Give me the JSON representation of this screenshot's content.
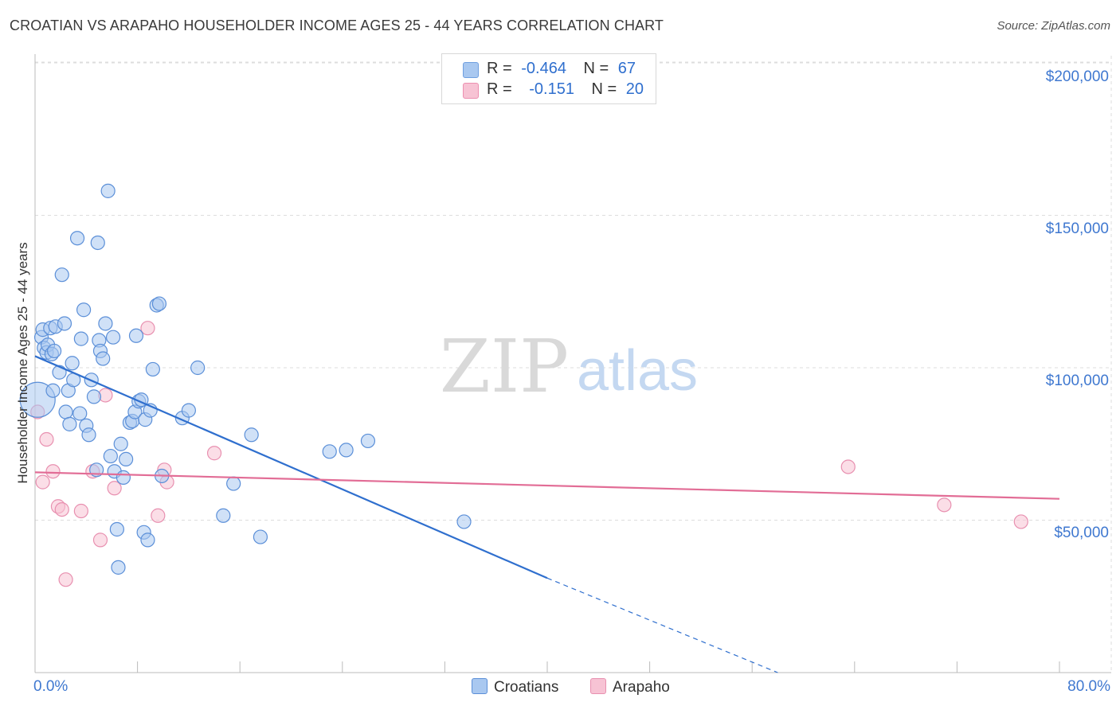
{
  "title": "CROATIAN VS ARAPAHO HOUSEHOLDER INCOME AGES 25 - 44 YEARS CORRELATION CHART",
  "source": "Source: ZipAtlas.com",
  "watermark": {
    "zip": "ZIP",
    "atlas": "atlas"
  },
  "legend_box": {
    "rows": [
      {
        "r_label": "R =",
        "r_value": "-0.464",
        "n_label": "N =",
        "n_value": "67",
        "color": "#a9c8f0",
        "stroke": "#6f9fe0"
      },
      {
        "r_label": "R =",
        "r_value": "-0.151",
        "n_label": "N =",
        "n_value": "20",
        "color": "#f7c3d4",
        "stroke": "#ec8fb0"
      }
    ]
  },
  "bottom_legend": {
    "series1": "Croatians",
    "series2": "Arapaho"
  },
  "colors": {
    "blue_fill": "#a9c8f0",
    "blue_stroke": "#5b8fd8",
    "blue_line": "#2f6fce",
    "pink_fill": "#f7c3d4",
    "pink_stroke": "#e890b0",
    "pink_line": "#e26d96",
    "grid": "#dddddd",
    "axis_text": "#3f78d0"
  },
  "chart_data": {
    "type": "scatter",
    "title": "CROATIAN VS ARAPAHO HOUSEHOLDER INCOME AGES 25 - 44 YEARS CORRELATION CHART",
    "xlabel": "",
    "ylabel": "Householder Income Ages 25 - 44 years",
    "xlim": [
      0,
      80
    ],
    "ylim": [
      0,
      205000
    ],
    "x_tick_labels": [
      "0.0%",
      "80.0%"
    ],
    "y_ticks": [
      50000,
      100000,
      150000,
      200000
    ],
    "y_tick_labels": [
      "$50,000",
      "$100,000",
      "$150,000",
      "$200,000"
    ],
    "series": [
      {
        "name": "Croatians",
        "r": -0.464,
        "n": 67,
        "points": [
          [
            0.2,
            89500
          ],
          [
            0.5,
            110000
          ],
          [
            0.6,
            112500
          ],
          [
            0.7,
            106500
          ],
          [
            0.9,
            105000
          ],
          [
            1.0,
            107500
          ],
          [
            1.2,
            113000
          ],
          [
            1.3,
            104500
          ],
          [
            1.4,
            92500
          ],
          [
            1.6,
            113500
          ],
          [
            1.5,
            105500
          ],
          [
            1.9,
            98500
          ],
          [
            2.1,
            130500
          ],
          [
            2.3,
            114500
          ],
          [
            2.4,
            85500
          ],
          [
            2.6,
            92500
          ],
          [
            2.7,
            81500
          ],
          [
            2.9,
            101500
          ],
          [
            3.0,
            96000
          ],
          [
            3.3,
            142500
          ],
          [
            3.5,
            85000
          ],
          [
            3.6,
            109500
          ],
          [
            3.8,
            119000
          ],
          [
            4.0,
            81000
          ],
          [
            4.2,
            78000
          ],
          [
            4.4,
            96000
          ],
          [
            4.6,
            90500
          ],
          [
            4.8,
            66500
          ],
          [
            4.9,
            141000
          ],
          [
            5.0,
            109000
          ],
          [
            5.1,
            105500
          ],
          [
            5.3,
            103000
          ],
          [
            5.5,
            114500
          ],
          [
            5.7,
            158000
          ],
          [
            5.9,
            71000
          ],
          [
            6.1,
            110000
          ],
          [
            6.2,
            66000
          ],
          [
            6.4,
            47000
          ],
          [
            6.5,
            34500
          ],
          [
            6.7,
            75000
          ],
          [
            6.9,
            64000
          ],
          [
            7.1,
            70000
          ],
          [
            7.4,
            82000
          ],
          [
            7.6,
            82500
          ],
          [
            7.8,
            85500
          ],
          [
            7.9,
            110500
          ],
          [
            8.1,
            89000
          ],
          [
            8.3,
            89500
          ],
          [
            8.5,
            46000
          ],
          [
            8.6,
            83000
          ],
          [
            8.8,
            43500
          ],
          [
            9.0,
            86000
          ],
          [
            9.2,
            99500
          ],
          [
            9.5,
            120500
          ],
          [
            9.7,
            121000
          ],
          [
            9.9,
            64500
          ],
          [
            11.5,
            83500
          ],
          [
            12.0,
            86000
          ],
          [
            12.7,
            100000
          ],
          [
            14.7,
            51500
          ],
          [
            15.5,
            62000
          ],
          [
            16.9,
            78000
          ],
          [
            17.6,
            44500
          ],
          [
            23.0,
            72500
          ],
          [
            24.3,
            73000
          ],
          [
            26.0,
            76000
          ],
          [
            33.5,
            49500
          ]
        ],
        "trend": {
          "x0": 0,
          "y0": 103800,
          "x1": 40,
          "y1": 31000,
          "dash_to_x": 58,
          "dash_to_y": 0
        }
      },
      {
        "name": "Arapaho",
        "r": -0.151,
        "n": 20,
        "points": [
          [
            0.2,
            85500
          ],
          [
            0.6,
            62500
          ],
          [
            0.9,
            76500
          ],
          [
            1.4,
            66000
          ],
          [
            1.8,
            54500
          ],
          [
            2.1,
            53500
          ],
          [
            2.4,
            30500
          ],
          [
            3.6,
            53000
          ],
          [
            4.5,
            66000
          ],
          [
            5.1,
            43500
          ],
          [
            5.5,
            91000
          ],
          [
            6.2,
            60500
          ],
          [
            8.8,
            113000
          ],
          [
            9.6,
            51500
          ],
          [
            10.1,
            66500
          ],
          [
            10.3,
            62500
          ],
          [
            14.0,
            72000
          ],
          [
            63.5,
            67500
          ],
          [
            71.0,
            55000
          ],
          [
            77.0,
            49500
          ]
        ],
        "trend": {
          "x0": 0,
          "y0": 65700,
          "x1": 80,
          "y1": 57000
        }
      }
    ],
    "grid": true,
    "legend_position": "top-center"
  }
}
